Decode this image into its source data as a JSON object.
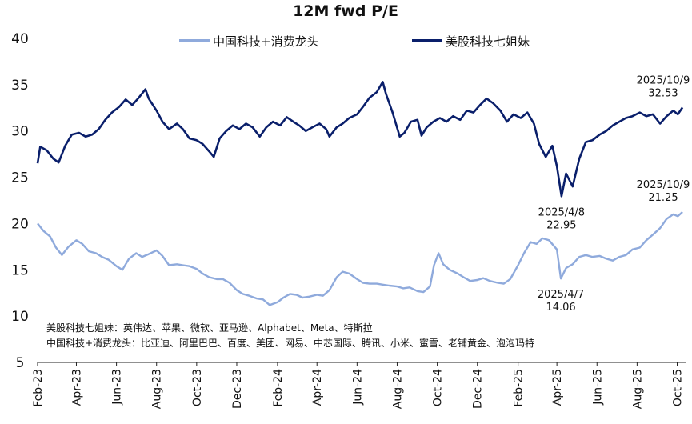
{
  "chart_data": {
    "type": "line",
    "title": "12M fwd P/E",
    "xlabel": "",
    "ylabel": "",
    "ylim": [
      5,
      40
    ],
    "yticks": [
      5,
      10,
      15,
      20,
      25,
      30,
      35,
      40
    ],
    "xlim": [
      "2023-02-01",
      "2025-10-15"
    ],
    "xticks": [
      {
        "label": "Feb-23",
        "date": "2023-02-01"
      },
      {
        "label": "Apr-23",
        "date": "2023-04-01"
      },
      {
        "label": "Jun-23",
        "date": "2023-06-01"
      },
      {
        "label": "Aug-23",
        "date": "2023-08-01"
      },
      {
        "label": "Oct-23",
        "date": "2023-10-01"
      },
      {
        "label": "Dec-23",
        "date": "2023-12-01"
      },
      {
        "label": "Feb-24",
        "date": "2024-02-01"
      },
      {
        "label": "Apr-24",
        "date": "2024-04-01"
      },
      {
        "label": "Jun-24",
        "date": "2024-06-01"
      },
      {
        "label": "Aug-24",
        "date": "2024-08-01"
      },
      {
        "label": "Oct-24",
        "date": "2024-10-01"
      },
      {
        "label": "Dec-24",
        "date": "2024-12-01"
      },
      {
        "label": "Feb-25",
        "date": "2025-02-01"
      },
      {
        "label": "Apr-25",
        "date": "2025-04-01"
      },
      {
        "label": "Jun-25",
        "date": "2025-06-01"
      },
      {
        "label": "Aug-25",
        "date": "2025-08-01"
      },
      {
        "label": "Oct-25",
        "date": "2025-10-01"
      }
    ],
    "grid": false,
    "legend": "top-center",
    "series": [
      {
        "name": "中国科技+消费龙头",
        "color": "#8FAADC",
        "points": [
          [
            "2023-02-01",
            20.0
          ],
          [
            "2023-02-10",
            19.2
          ],
          [
            "2023-02-20",
            18.6
          ],
          [
            "2023-03-01",
            17.4
          ],
          [
            "2023-03-10",
            16.6
          ],
          [
            "2023-03-20",
            17.5
          ],
          [
            "2023-04-01",
            18.2
          ],
          [
            "2023-04-10",
            17.8
          ],
          [
            "2023-04-20",
            17.0
          ],
          [
            "2023-05-01",
            16.8
          ],
          [
            "2023-05-10",
            16.4
          ],
          [
            "2023-05-20",
            16.1
          ],
          [
            "2023-06-01",
            15.4
          ],
          [
            "2023-06-10",
            15.0
          ],
          [
            "2023-06-20",
            16.2
          ],
          [
            "2023-07-01",
            16.8
          ],
          [
            "2023-07-10",
            16.4
          ],
          [
            "2023-07-20",
            16.7
          ],
          [
            "2023-08-01",
            17.1
          ],
          [
            "2023-08-10",
            16.5
          ],
          [
            "2023-08-20",
            15.5
          ],
          [
            "2023-09-01",
            15.6
          ],
          [
            "2023-09-10",
            15.5
          ],
          [
            "2023-09-20",
            15.4
          ],
          [
            "2023-10-01",
            15.1
          ],
          [
            "2023-10-10",
            14.6
          ],
          [
            "2023-10-20",
            14.2
          ],
          [
            "2023-11-01",
            14.0
          ],
          [
            "2023-11-10",
            14.0
          ],
          [
            "2023-11-20",
            13.6
          ],
          [
            "2023-12-01",
            12.8
          ],
          [
            "2023-12-10",
            12.4
          ],
          [
            "2023-12-20",
            12.2
          ],
          [
            "2024-01-01",
            11.9
          ],
          [
            "2024-01-10",
            11.8
          ],
          [
            "2024-01-20",
            11.2
          ],
          [
            "2024-02-01",
            11.5
          ],
          [
            "2024-02-10",
            12.0
          ],
          [
            "2024-02-20",
            12.4
          ],
          [
            "2024-03-01",
            12.3
          ],
          [
            "2024-03-10",
            12.0
          ],
          [
            "2024-03-20",
            12.1
          ],
          [
            "2024-04-01",
            12.3
          ],
          [
            "2024-04-10",
            12.2
          ],
          [
            "2024-04-20",
            12.8
          ],
          [
            "2024-05-01",
            14.2
          ],
          [
            "2024-05-10",
            14.8
          ],
          [
            "2024-05-20",
            14.6
          ],
          [
            "2024-06-01",
            14.0
          ],
          [
            "2024-06-10",
            13.6
          ],
          [
            "2024-06-20",
            13.5
          ],
          [
            "2024-07-01",
            13.5
          ],
          [
            "2024-07-10",
            13.4
          ],
          [
            "2024-07-20",
            13.3
          ],
          [
            "2024-08-01",
            13.2
          ],
          [
            "2024-08-10",
            13.0
          ],
          [
            "2024-08-20",
            13.1
          ],
          [
            "2024-09-01",
            12.7
          ],
          [
            "2024-09-10",
            12.6
          ],
          [
            "2024-09-20",
            13.2
          ],
          [
            "2024-09-26",
            15.5
          ],
          [
            "2024-10-03",
            16.8
          ],
          [
            "2024-10-10",
            15.6
          ],
          [
            "2024-10-20",
            15.0
          ],
          [
            "2024-11-01",
            14.6
          ],
          [
            "2024-11-10",
            14.2
          ],
          [
            "2024-11-20",
            13.8
          ],
          [
            "2024-12-01",
            13.9
          ],
          [
            "2024-12-10",
            14.1
          ],
          [
            "2024-12-20",
            13.8
          ],
          [
            "2025-01-01",
            13.6
          ],
          [
            "2025-01-10",
            13.5
          ],
          [
            "2025-01-20",
            14.0
          ],
          [
            "2025-02-01",
            15.5
          ],
          [
            "2025-02-10",
            16.8
          ],
          [
            "2025-02-20",
            18.0
          ],
          [
            "2025-03-01",
            17.8
          ],
          [
            "2025-03-10",
            18.4
          ],
          [
            "2025-03-20",
            18.2
          ],
          [
            "2025-04-01",
            17.2
          ],
          [
            "2025-04-07",
            14.06
          ],
          [
            "2025-04-15",
            15.2
          ],
          [
            "2025-04-25",
            15.6
          ],
          [
            "2025-05-05",
            16.4
          ],
          [
            "2025-05-15",
            16.6
          ],
          [
            "2025-05-25",
            16.4
          ],
          [
            "2025-06-05",
            16.5
          ],
          [
            "2025-06-15",
            16.2
          ],
          [
            "2025-06-25",
            16.0
          ],
          [
            "2025-07-05",
            16.4
          ],
          [
            "2025-07-15",
            16.6
          ],
          [
            "2025-07-25",
            17.2
          ],
          [
            "2025-08-05",
            17.4
          ],
          [
            "2025-08-15",
            18.2
          ],
          [
            "2025-08-25",
            18.8
          ],
          [
            "2025-09-05",
            19.5
          ],
          [
            "2025-09-15",
            20.5
          ],
          [
            "2025-09-25",
            21.0
          ],
          [
            "2025-10-02",
            20.8
          ],
          [
            "2025-10-09",
            21.25
          ]
        ]
      },
      {
        "name": "美股科技七姐妹",
        "color": "#0A1F6B",
        "points": [
          [
            "2023-02-01",
            26.5
          ],
          [
            "2023-02-05",
            28.3
          ],
          [
            "2023-02-15",
            27.9
          ],
          [
            "2023-02-25",
            27.0
          ],
          [
            "2023-03-05",
            26.6
          ],
          [
            "2023-03-15",
            28.4
          ],
          [
            "2023-03-25",
            29.6
          ],
          [
            "2023-04-05",
            29.8
          ],
          [
            "2023-04-15",
            29.4
          ],
          [
            "2023-04-25",
            29.6
          ],
          [
            "2023-05-05",
            30.2
          ],
          [
            "2023-05-15",
            31.2
          ],
          [
            "2023-05-25",
            32.0
          ],
          [
            "2023-06-05",
            32.6
          ],
          [
            "2023-06-15",
            33.4
          ],
          [
            "2023-06-25",
            32.8
          ],
          [
            "2023-07-05",
            33.6
          ],
          [
            "2023-07-15",
            34.5
          ],
          [
            "2023-07-20",
            33.5
          ],
          [
            "2023-08-01",
            32.2
          ],
          [
            "2023-08-10",
            31.0
          ],
          [
            "2023-08-20",
            30.2
          ],
          [
            "2023-09-01",
            30.8
          ],
          [
            "2023-09-10",
            30.2
          ],
          [
            "2023-09-20",
            29.2
          ],
          [
            "2023-10-01",
            29.0
          ],
          [
            "2023-10-10",
            28.6
          ],
          [
            "2023-10-20",
            27.8
          ],
          [
            "2023-10-27",
            27.2
          ],
          [
            "2023-11-05",
            29.2
          ],
          [
            "2023-11-15",
            30.0
          ],
          [
            "2023-11-25",
            30.6
          ],
          [
            "2023-12-05",
            30.2
          ],
          [
            "2023-12-15",
            30.8
          ],
          [
            "2023-12-25",
            30.4
          ],
          [
            "2024-01-05",
            29.4
          ],
          [
            "2024-01-15",
            30.4
          ],
          [
            "2024-01-25",
            31.0
          ],
          [
            "2024-02-05",
            30.6
          ],
          [
            "2024-02-15",
            31.5
          ],
          [
            "2024-02-25",
            31.0
          ],
          [
            "2024-03-05",
            30.6
          ],
          [
            "2024-03-15",
            30.0
          ],
          [
            "2024-03-25",
            30.4
          ],
          [
            "2024-04-05",
            30.8
          ],
          [
            "2024-04-15",
            30.2
          ],
          [
            "2024-04-20",
            29.4
          ],
          [
            "2024-05-01",
            30.4
          ],
          [
            "2024-05-10",
            30.8
          ],
          [
            "2024-05-20",
            31.4
          ],
          [
            "2024-06-01",
            31.8
          ],
          [
            "2024-06-10",
            32.6
          ],
          [
            "2024-06-20",
            33.6
          ],
          [
            "2024-07-01",
            34.2
          ],
          [
            "2024-07-10",
            35.3
          ],
          [
            "2024-07-15",
            34.0
          ],
          [
            "2024-07-25",
            32.0
          ],
          [
            "2024-08-05",
            29.4
          ],
          [
            "2024-08-12",
            29.8
          ],
          [
            "2024-08-22",
            31.0
          ],
          [
            "2024-09-01",
            31.2
          ],
          [
            "2024-09-07",
            29.5
          ],
          [
            "2024-09-15",
            30.4
          ],
          [
            "2024-09-25",
            31.0
          ],
          [
            "2024-10-05",
            31.4
          ],
          [
            "2024-10-15",
            31.0
          ],
          [
            "2024-10-25",
            31.6
          ],
          [
            "2024-11-05",
            31.2
          ],
          [
            "2024-11-15",
            32.2
          ],
          [
            "2024-11-25",
            32.0
          ],
          [
            "2024-12-05",
            32.8
          ],
          [
            "2024-12-15",
            33.5
          ],
          [
            "2024-12-25",
            33.0
          ],
          [
            "2025-01-05",
            32.2
          ],
          [
            "2025-01-15",
            31.0
          ],
          [
            "2025-01-25",
            31.8
          ],
          [
            "2025-02-05",
            31.4
          ],
          [
            "2025-02-15",
            32.0
          ],
          [
            "2025-02-25",
            30.8
          ],
          [
            "2025-03-05",
            28.6
          ],
          [
            "2025-03-15",
            27.2
          ],
          [
            "2025-03-25",
            28.4
          ],
          [
            "2025-04-01",
            26.2
          ],
          [
            "2025-04-08",
            22.95
          ],
          [
            "2025-04-15",
            25.4
          ],
          [
            "2025-04-25",
            24.0
          ],
          [
            "2025-05-05",
            27.0
          ],
          [
            "2025-05-15",
            28.8
          ],
          [
            "2025-05-25",
            29.0
          ],
          [
            "2025-06-05",
            29.6
          ],
          [
            "2025-06-15",
            30.0
          ],
          [
            "2025-06-25",
            30.6
          ],
          [
            "2025-07-05",
            31.0
          ],
          [
            "2025-07-15",
            31.4
          ],
          [
            "2025-07-25",
            31.6
          ],
          [
            "2025-08-05",
            32.0
          ],
          [
            "2025-08-15",
            31.6
          ],
          [
            "2025-08-25",
            31.8
          ],
          [
            "2025-09-05",
            30.8
          ],
          [
            "2025-09-15",
            31.6
          ],
          [
            "2025-09-25",
            32.2
          ],
          [
            "2025-10-02",
            31.8
          ],
          [
            "2025-10-09",
            32.53
          ]
        ]
      }
    ],
    "annotations": [
      {
        "series": 1,
        "date": "2025-10-09",
        "date_label": "2025/10/9",
        "value_label": "32.53",
        "position": "above"
      },
      {
        "series": 1,
        "date": "2025-04-08",
        "date_label": "2025/4/8",
        "value_label": "22.95",
        "position": "below"
      },
      {
        "series": 0,
        "date": "2025-10-09",
        "date_label": "2025/10/9",
        "value_label": "21.25",
        "position": "above"
      },
      {
        "series": 0,
        "date": "2025-04-07",
        "date_label": "2025/4/7",
        "value_label": "14.06",
        "position": "below"
      }
    ],
    "notes": [
      "美股科技七姐妹：英伟达、苹果、微软、亚马逊、Alphabet、Meta、特斯拉",
      "中国科技+消费龙头：比亚迪、阿里巴巴、百度、美团、网易、中芯国际、腾讯、小米、蜜雪、老铺黄金、泡泡玛特"
    ]
  }
}
